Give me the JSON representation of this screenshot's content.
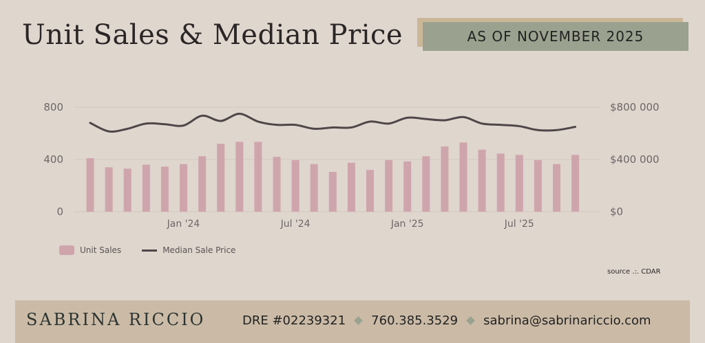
{
  "header": {
    "title": "Unit Sales & Median Price",
    "badge": "AS OF NOVEMBER 2025"
  },
  "chart_data": {
    "type": "bar",
    "x_tick_labels": [
      "Jan '24",
      "Jul '24",
      "Jan '25",
      "Jul '25"
    ],
    "y_left": {
      "ticks": [
        "0",
        "400",
        "800"
      ],
      "ylim": [
        0,
        800
      ]
    },
    "y_right": {
      "ticks": [
        "$0",
        "$400 000",
        "$800 000"
      ],
      "ylim": [
        0,
        800000
      ]
    },
    "grid": true,
    "legend_position": "bottom-left",
    "series": [
      {
        "name": "Unit Sales",
        "type": "bar",
        "color": "#cfa5ac",
        "values": [
          410,
          340,
          330,
          360,
          345,
          365,
          425,
          520,
          535,
          535,
          420,
          395,
          365,
          305,
          375,
          320,
          395,
          385,
          425,
          500,
          530,
          475,
          445,
          435,
          395,
          365,
          435
        ]
      },
      {
        "name": "Median Sale Price",
        "type": "line",
        "color": "#4f4648",
        "values": [
          680000,
          615000,
          635000,
          675000,
          670000,
          660000,
          735000,
          695000,
          750000,
          690000,
          665000,
          665000,
          635000,
          645000,
          645000,
          690000,
          675000,
          720000,
          710000,
          700000,
          725000,
          675000,
          665000,
          655000,
          625000,
          625000,
          650000
        ]
      }
    ],
    "source": "source .:. CDAR"
  },
  "legend": {
    "unit_sales": "Unit Sales",
    "median_price": "Median Sale Price"
  },
  "footer": {
    "name": "SABRINA RICCIO",
    "dre": "DRE #02239321",
    "phone": "760.385.3529",
    "email": "sabrina@sabrinariccio.com"
  },
  "colors": {
    "background": "#dfd6ce",
    "badge": "#9aa28f",
    "badge_shadow": "#cbb797",
    "footer": "#cbbba6"
  }
}
